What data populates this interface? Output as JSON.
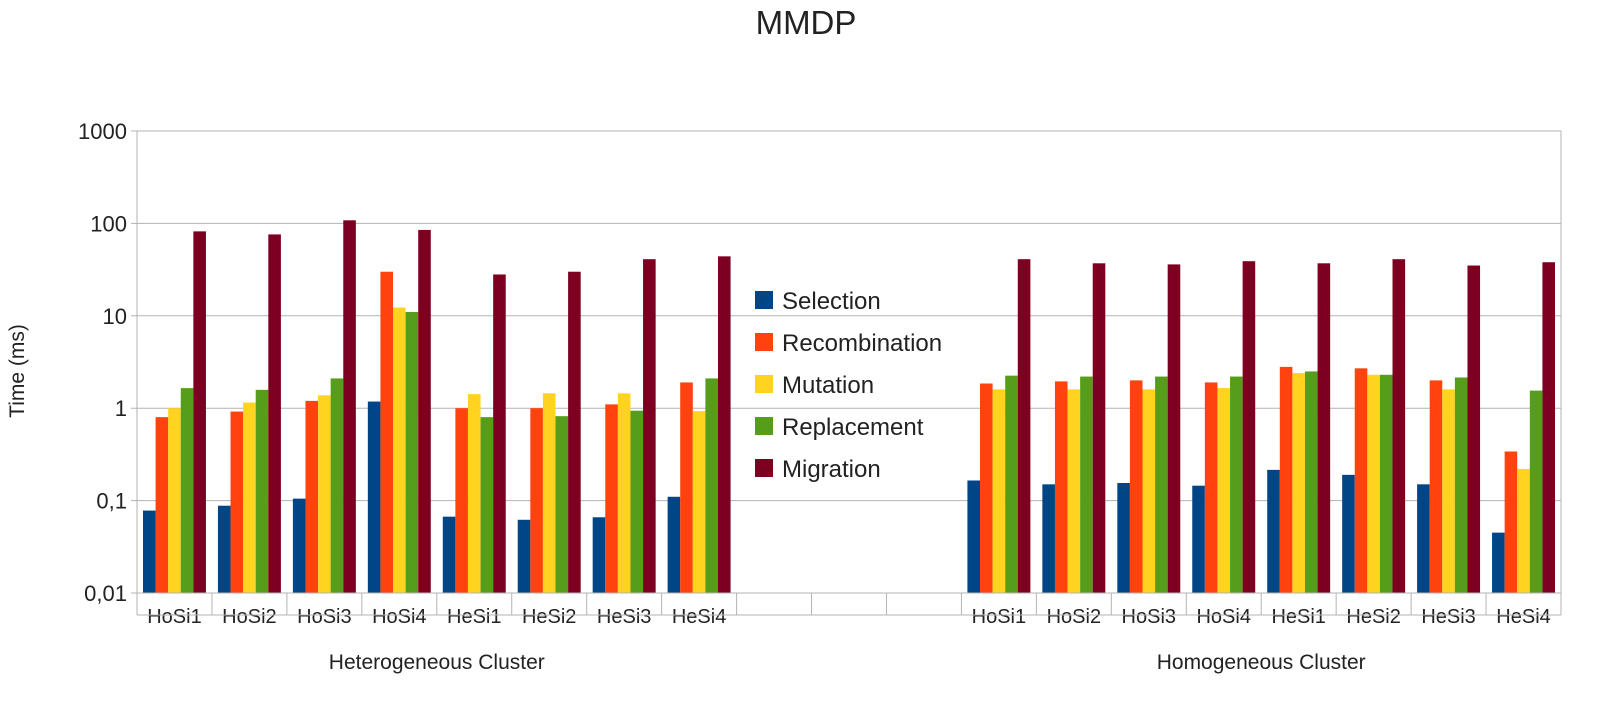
{
  "chart_data": {
    "type": "bar",
    "title": "MMDP",
    "ylabel": "Time (ms)",
    "xlabel": "",
    "yscale": "log",
    "ylim": [
      0.01,
      1000
    ],
    "yticks": [
      0.01,
      0.1,
      1,
      10,
      100,
      1000
    ],
    "ytick_labels": [
      "0,01",
      "0,1",
      "1",
      "10",
      "100",
      "1000"
    ],
    "grid": true,
    "legend_position": "center",
    "groups": [
      {
        "label": "Heterogeneous Cluster",
        "categories": [
          "HoSi1",
          "HoSi2",
          "HoSi3",
          "HoSi4",
          "HeSi1",
          "HeSi2",
          "HeSi3",
          "HeSi4"
        ],
        "series": [
          {
            "name": "Selection",
            "color": "#004586",
            "values": [
              0.078,
              0.088,
              0.105,
              1.18,
              0.067,
              0.062,
              0.066,
              0.11
            ]
          },
          {
            "name": "Recombination",
            "color": "#ff420e",
            "values": [
              0.8,
              0.92,
              1.2,
              30,
              1.0,
              1.0,
              1.1,
              1.9
            ]
          },
          {
            "name": "Mutation",
            "color": "#ffd320",
            "values": [
              1.0,
              1.15,
              1.38,
              12.3,
              1.42,
              1.45,
              1.45,
              0.93
            ]
          },
          {
            "name": "Replacement",
            "color": "#579d1c",
            "values": [
              1.65,
              1.58,
              2.1,
              11.0,
              0.8,
              0.82,
              0.94,
              2.1
            ]
          },
          {
            "name": "Migration",
            "color": "#7e0021",
            "values": [
              82,
              76,
              108,
              85,
              28,
              30,
              41,
              44
            ]
          }
        ]
      },
      {
        "label": "",
        "categories": [
          "",
          "",
          ""
        ],
        "series": []
      },
      {
        "label": "Homogeneous Cluster",
        "categories": [
          "HoSi1",
          "HoSi2",
          "HoSi3",
          "HoSi4",
          "HeSi1",
          "HeSi2",
          "HeSi3",
          "HeSi4"
        ],
        "series": [
          {
            "name": "Selection",
            "color": "#004586",
            "values": [
              0.165,
              0.15,
              0.155,
              0.145,
              0.215,
              0.19,
              0.15,
              0.045
            ]
          },
          {
            "name": "Recombination",
            "color": "#ff420e",
            "values": [
              1.85,
              1.95,
              2.0,
              1.9,
              2.8,
              2.7,
              2.0,
              0.34
            ]
          },
          {
            "name": "Mutation",
            "color": "#ffd320",
            "values": [
              1.6,
              1.6,
              1.6,
              1.65,
              2.4,
              2.3,
              1.6,
              0.22
            ]
          },
          {
            "name": "Replacement",
            "color": "#579d1c",
            "values": [
              2.25,
              2.2,
              2.2,
              2.2,
              2.5,
              2.3,
              2.15,
              1.55
            ]
          },
          {
            "name": "Migration",
            "color": "#7e0021",
            "values": [
              41,
              37,
              36,
              39,
              37,
              41,
              35,
              38
            ]
          }
        ]
      }
    ],
    "legend": [
      {
        "name": "Selection",
        "color": "#004586"
      },
      {
        "name": "Recombination",
        "color": "#ff420e"
      },
      {
        "name": "Mutation",
        "color": "#ffd320"
      },
      {
        "name": "Replacement",
        "color": "#579d1c"
      },
      {
        "name": "Migration",
        "color": "#7e0021"
      }
    ]
  }
}
